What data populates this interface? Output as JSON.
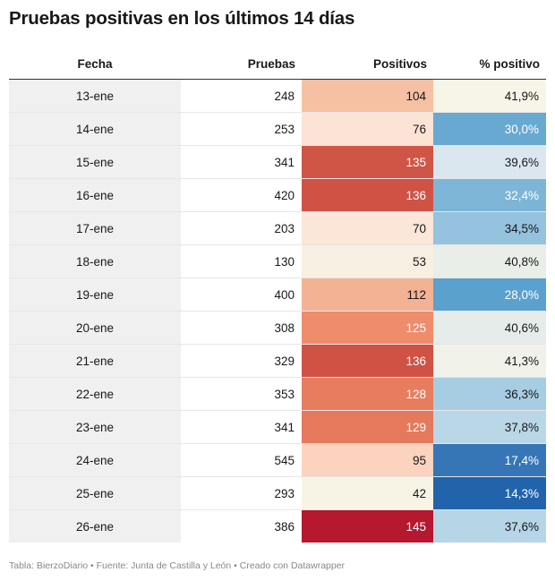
{
  "title": "Pruebas positivas en los últimos 14 días",
  "footer": "Tabla: BierzoDiario • Fuente: Junta de Castilla y León • Creado con Datawrapper",
  "chart_data": {
    "type": "table",
    "columns": [
      "Fecha",
      "Pruebas",
      "Positivos",
      "% positivo"
    ],
    "rows": [
      {
        "fecha": "13-ene",
        "pruebas": "248",
        "positivos": "104",
        "pct": "41,9%",
        "pos_bg": "#f6c0a4",
        "pos_fg": "#181818",
        "pct_bg": "#f7f5e8",
        "pct_fg": "#181818"
      },
      {
        "fecha": "14-ene",
        "pruebas": "253",
        "positivos": "76",
        "pct": "30,0%",
        "pos_bg": "#fbe3d5",
        "pos_fg": "#181818",
        "pct_bg": "#68a9d1",
        "pct_fg": "#ffffff"
      },
      {
        "fecha": "15-ene",
        "pruebas": "341",
        "positivos": "135",
        "pct": "39,6%",
        "pos_bg": "#d05546",
        "pos_fg": "#ffffff",
        "pct_bg": "#dbe7ef",
        "pct_fg": "#181818"
      },
      {
        "fecha": "16-ene",
        "pruebas": "420",
        "positivos": "136",
        "pct": "32,4%",
        "pos_bg": "#cf5245",
        "pos_fg": "#ffffff",
        "pct_bg": "#7db5d7",
        "pct_fg": "#ffffff"
      },
      {
        "fecha": "17-ene",
        "pruebas": "203",
        "positivos": "70",
        "pct": "34,5%",
        "pos_bg": "#fbe6d8",
        "pos_fg": "#181818",
        "pct_bg": "#94c2df",
        "pct_fg": "#181818"
      },
      {
        "fecha": "18-ene",
        "pruebas": "130",
        "positivos": "53",
        "pct": "40,8%",
        "pos_bg": "#f8efe3",
        "pos_fg": "#181818",
        "pct_bg": "#e9eee9",
        "pct_fg": "#181818"
      },
      {
        "fecha": "19-ene",
        "pruebas": "400",
        "positivos": "112",
        "pct": "28,0%",
        "pos_bg": "#f3b293",
        "pos_fg": "#181818",
        "pct_bg": "#5ba1cd",
        "pct_fg": "#ffffff"
      },
      {
        "fecha": "20-ene",
        "pruebas": "308",
        "positivos": "125",
        "pct": "40,6%",
        "pos_bg": "#ee8c6b",
        "pos_fg": "#ffffff",
        "pct_bg": "#e5ecea",
        "pct_fg": "#181818"
      },
      {
        "fecha": "21-ene",
        "pruebas": "329",
        "positivos": "136",
        "pct": "41,3%",
        "pos_bg": "#cf5245",
        "pos_fg": "#ffffff",
        "pct_bg": "#f0f1e9",
        "pct_fg": "#181818"
      },
      {
        "fecha": "22-ene",
        "pruebas": "353",
        "positivos": "128",
        "pct": "36,3%",
        "pos_bg": "#e77d5e",
        "pos_fg": "#ffffff",
        "pct_bg": "#a7cde3",
        "pct_fg": "#181818"
      },
      {
        "fecha": "23-ene",
        "pruebas": "341",
        "positivos": "129",
        "pct": "37,8%",
        "pos_bg": "#e6785b",
        "pos_fg": "#ffffff",
        "pct_bg": "#bad7e8",
        "pct_fg": "#181818"
      },
      {
        "fecha": "24-ene",
        "pruebas": "545",
        "positivos": "95",
        "pct": "17,4%",
        "pos_bg": "#fcd3bf",
        "pos_fg": "#181818",
        "pct_bg": "#3676b6",
        "pct_fg": "#ffffff"
      },
      {
        "fecha": "25-ene",
        "pruebas": "293",
        "positivos": "42",
        "pct": "14,3%",
        "pos_bg": "#f7f4e5",
        "pos_fg": "#181818",
        "pct_bg": "#2264ab",
        "pct_fg": "#ffffff"
      },
      {
        "fecha": "26-ene",
        "pruebas": "386",
        "positivos": "145",
        "pct": "37,6%",
        "pos_bg": "#b5182f",
        "pos_fg": "#ffffff",
        "pct_bg": "#b6d5e7",
        "pct_fg": "#181818"
      }
    ]
  }
}
